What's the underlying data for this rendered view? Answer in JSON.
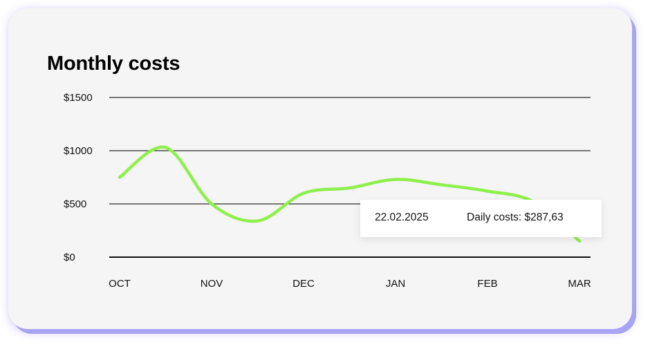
{
  "chart_data": {
    "type": "line",
    "title": "Monthly costs",
    "xlabel": "",
    "ylabel": "",
    "categories": [
      "OCT",
      "NOV",
      "DEC",
      "JAN",
      "FEB",
      "MAR"
    ],
    "yticks": [
      "$1500",
      "$1000",
      "$500",
      "$0"
    ],
    "ytick_values": [
      1500,
      1000,
      500,
      0
    ],
    "ylim": [
      0,
      1500
    ],
    "grid": true,
    "legend": "none",
    "series": [
      {
        "color": "#8ef04d",
        "x": [
          0,
          0.5,
          1,
          1.5,
          2,
          2.5,
          3,
          3.5,
          4,
          4.5,
          5
        ],
        "values": [
          750,
          1030,
          500,
          340,
          600,
          650,
          730,
          680,
          620,
          520,
          150
        ]
      }
    ],
    "tooltip": {
      "date": "22.02.2025",
      "text": "Daily costs: $287,63"
    },
    "colors": {
      "line": "#8ef04d",
      "grid": "#2b2b2b",
      "card": "#f5f5f5",
      "card_shadow": "#a9a3f4"
    }
  }
}
